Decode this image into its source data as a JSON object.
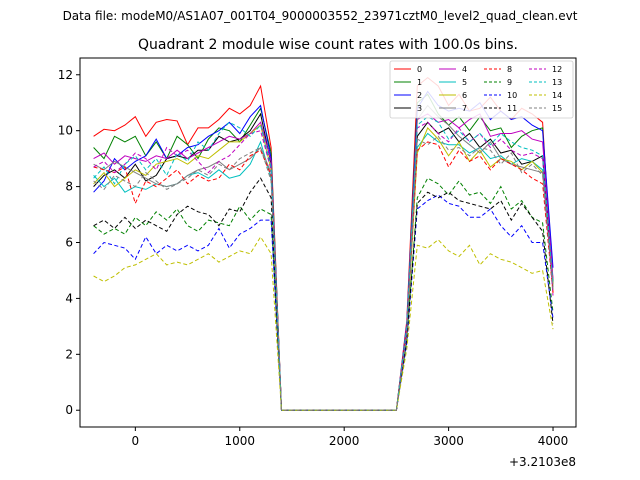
{
  "suptitle": "Data file: modeM0/AS1A07_001T04_9000003552_23971cztM0_level2_quad_clean.evt",
  "chart_data": {
    "type": "line",
    "title": "Quadrant 2 module wise count rates with 100.0s bins.",
    "xlabel": "",
    "ylabel": "",
    "x_offset_label": "+3.2103e8",
    "xlim": [
      -530,
      4220
    ],
    "ylim": [
      -0.6,
      12.6
    ],
    "x_ticks": [
      0,
      1000,
      2000,
      3000,
      4000
    ],
    "x_tick_labels": [
      "0",
      "1000",
      "2000",
      "3000",
      "4000"
    ],
    "y_ticks": [
      0,
      2,
      4,
      6,
      8,
      10,
      12
    ],
    "y_tick_labels": [
      "0",
      "2",
      "4",
      "6",
      "8",
      "10",
      "12"
    ],
    "grid": false,
    "legend_position": "top-right",
    "x": [
      -400,
      -300,
      -200,
      -100,
      0,
      100,
      200,
      300,
      400,
      500,
      600,
      700,
      800,
      900,
      1000,
      1100,
      1200,
      1300,
      1400,
      1500,
      1600,
      1700,
      1800,
      1900,
      2000,
      2100,
      2200,
      2300,
      2400,
      2500,
      2600,
      2700,
      2800,
      2900,
      3000,
      3100,
      3200,
      3300,
      3400,
      3500,
      3600,
      3700,
      3800,
      3900,
      4000
    ],
    "series": [
      {
        "name": "0",
        "color": "#ff0000",
        "dash": "solid",
        "values": [
          9.8,
          10.05,
          10.0,
          10.2,
          10.5,
          9.8,
          10.3,
          10.4,
          10.35,
          9.5,
          10.1,
          10.1,
          10.4,
          10.8,
          10.6,
          10.9,
          11.6,
          9.4,
          0,
          0,
          0,
          0,
          0,
          0,
          0,
          0,
          0,
          0,
          0,
          0,
          3.2,
          11.6,
          11.9,
          11.6,
          10.9,
          11.3,
          10.7,
          10.8,
          11.2,
          10.7,
          10.4,
          10.8,
          10.6,
          10.3,
          4.2
        ]
      },
      {
        "name": "1",
        "color": "#008000",
        "dash": "solid",
        "values": [
          9.4,
          9.0,
          9.8,
          9.6,
          9.8,
          9.1,
          9.6,
          9.0,
          9.8,
          9.5,
          9.0,
          9.7,
          10.1,
          10.0,
          9.6,
          10.2,
          10.8,
          9.2,
          0,
          0,
          0,
          0,
          0,
          0,
          0,
          0,
          0,
          0,
          0,
          0,
          3.0,
          11.0,
          11.3,
          10.6,
          10.2,
          10.5,
          10.0,
          10.5,
          10.0,
          10.1,
          9.4,
          9.8,
          10.0,
          10.1,
          4.6
        ]
      },
      {
        "name": "2",
        "color": "#0000ff",
        "dash": "solid",
        "values": [
          7.8,
          8.2,
          9.0,
          8.6,
          8.9,
          9.1,
          9.7,
          9.0,
          9.1,
          9.4,
          9.5,
          9.8,
          10.0,
          10.3,
          9.9,
          10.5,
          10.9,
          9.0,
          0,
          0,
          0,
          0,
          0,
          0,
          0,
          0,
          0,
          0,
          0,
          0,
          3.1,
          10.8,
          11.4,
          10.9,
          10.7,
          10.8,
          10.7,
          11.0,
          10.4,
          10.7,
          10.4,
          10.5,
          10.2,
          10.0,
          5.1
        ]
      },
      {
        "name": "3",
        "color": "#000000",
        "dash": "solid",
        "values": [
          8.0,
          8.4,
          8.6,
          8.3,
          8.8,
          8.2,
          8.4,
          9.0,
          9.1,
          9.0,
          9.3,
          9.3,
          9.8,
          9.6,
          9.7,
          10.0,
          10.6,
          8.8,
          0,
          0,
          0,
          0,
          0,
          0,
          0,
          0,
          0,
          0,
          0,
          0,
          2.9,
          9.8,
          10.3,
          9.9,
          10.1,
          9.6,
          9.9,
          9.4,
          9.7,
          9.2,
          9.3,
          8.8,
          8.9,
          9.1,
          4.5
        ]
      },
      {
        "name": "4",
        "color": "#bf00bf",
        "dash": "solid",
        "values": [
          9.0,
          9.2,
          8.8,
          9.1,
          9.0,
          8.9,
          9.1,
          9.0,
          9.3,
          9.0,
          9.2,
          9.4,
          9.6,
          9.8,
          9.7,
          9.9,
          10.3,
          8.9,
          0,
          0,
          0,
          0,
          0,
          0,
          0,
          0,
          0,
          0,
          0,
          0,
          3.0,
          10.4,
          10.6,
          10.3,
          10.4,
          10.1,
          10.4,
          10.6,
          9.8,
          9.9,
          9.9,
          10.0,
          9.7,
          9.6,
          4.7
        ]
      },
      {
        "name": "5",
        "color": "#00bfbf",
        "dash": "solid",
        "values": [
          8.4,
          8.0,
          8.3,
          7.8,
          8.0,
          7.9,
          8.1,
          8.0,
          8.1,
          8.4,
          8.5,
          8.3,
          8.6,
          8.3,
          8.4,
          8.8,
          9.6,
          8.3,
          0,
          0,
          0,
          0,
          0,
          0,
          0,
          0,
          0,
          0,
          0,
          0,
          2.8,
          9.4,
          9.9,
          9.6,
          9.5,
          9.5,
          9.2,
          9.4,
          9.0,
          9.1,
          8.8,
          9.0,
          8.9,
          8.6,
          4.4
        ]
      },
      {
        "name": "6",
        "color": "#bfbf00",
        "dash": "solid",
        "values": [
          8.1,
          8.5,
          8.0,
          8.3,
          8.6,
          8.4,
          8.8,
          8.9,
          9.0,
          8.8,
          9.1,
          9.0,
          9.3,
          9.6,
          9.6,
          9.9,
          10.2,
          8.6,
          0,
          0,
          0,
          0,
          0,
          0,
          0,
          0,
          0,
          0,
          0,
          0,
          2.7,
          9.2,
          10.1,
          9.7,
          9.1,
          9.6,
          8.9,
          9.3,
          8.7,
          9.0,
          8.9,
          8.6,
          8.9,
          8.5,
          4.5
        ]
      },
      {
        "name": "7",
        "color": "#808080",
        "dash": "solid",
        "values": [
          8.8,
          8.6,
          8.9,
          8.7,
          8.5,
          8.3,
          8.1,
          8.0,
          8.1,
          8.4,
          8.6,
          8.7,
          8.9,
          8.6,
          8.8,
          9.0,
          9.4,
          8.5,
          0,
          0,
          0,
          0,
          0,
          0,
          0,
          0,
          0,
          0,
          0,
          0,
          2.9,
          10.4,
          10.9,
          10.5,
          10.2,
          9.8,
          9.5,
          9.2,
          9.6,
          9.0,
          8.8,
          8.7,
          8.6,
          8.5,
          4.4
        ]
      },
      {
        "name": "8",
        "color": "#ff0000",
        "dash": "dashed",
        "values": [
          8.7,
          8.6,
          8.5,
          8.7,
          7.4,
          8.2,
          8.0,
          8.3,
          8.6,
          8.1,
          8.4,
          8.2,
          8.3,
          8.8,
          8.6,
          9.1,
          9.3,
          8.4,
          0,
          0,
          0,
          0,
          0,
          0,
          0,
          0,
          0,
          0,
          0,
          0,
          2.9,
          9.3,
          9.6,
          9.5,
          8.7,
          9.3,
          8.9,
          9.1,
          8.6,
          9.0,
          8.8,
          8.6,
          8.3,
          8.1,
          4.2
        ]
      },
      {
        "name": "9",
        "color": "#008000",
        "dash": "dashed",
        "values": [
          6.6,
          6.3,
          6.5,
          6.3,
          6.9,
          6.6,
          7.1,
          6.8,
          7.2,
          6.6,
          6.4,
          6.8,
          6.7,
          6.6,
          7.3,
          6.8,
          7.2,
          7.0,
          0,
          0,
          0,
          0,
          0,
          0,
          0,
          0,
          0,
          0,
          0,
          0,
          2.5,
          7.6,
          8.3,
          8.1,
          7.7,
          8.2,
          7.7,
          7.8,
          7.4,
          8.0,
          7.2,
          7.5,
          6.9,
          6.7,
          3.5
        ]
      },
      {
        "name": "10",
        "color": "#0000ff",
        "dash": "dashed",
        "values": [
          5.6,
          6.0,
          5.9,
          5.8,
          5.4,
          6.2,
          5.6,
          5.9,
          5.7,
          5.9,
          5.7,
          5.9,
          6.5,
          5.8,
          6.3,
          6.5,
          6.8,
          6.8,
          0,
          0,
          0,
          0,
          0,
          0,
          0,
          0,
          0,
          0,
          0,
          0,
          2.4,
          7.2,
          7.5,
          7.7,
          7.4,
          7.3,
          6.9,
          6.9,
          7.2,
          6.6,
          6.2,
          6.6,
          6.0,
          6.0,
          3.3
        ]
      },
      {
        "name": "11",
        "color": "#000000",
        "dash": "dashed",
        "values": [
          6.6,
          6.8,
          6.5,
          6.9,
          6.5,
          6.8,
          6.6,
          6.4,
          7.0,
          7.3,
          7.1,
          7.0,
          6.6,
          7.2,
          7.1,
          7.8,
          8.3,
          7.6,
          0,
          0,
          0,
          0,
          0,
          0,
          0,
          0,
          0,
          0,
          0,
          0,
          2.6,
          7.4,
          7.8,
          7.6,
          7.8,
          7.5,
          7.4,
          7.3,
          7.2,
          7.5,
          6.8,
          7.4,
          6.9,
          6.4,
          3.1
        ]
      },
      {
        "name": "12",
        "color": "#bf00bf",
        "dash": "dashed",
        "values": [
          8.7,
          8.9,
          8.5,
          8.8,
          9.2,
          9.0,
          8.6,
          9.4,
          9.1,
          9.3,
          8.9,
          8.5,
          8.9,
          9.1,
          9.5,
          9.9,
          10.0,
          8.6,
          0,
          0,
          0,
          0,
          0,
          0,
          0,
          0,
          0,
          0,
          0,
          0,
          2.8,
          10.1,
          10.3,
          9.9,
          9.6,
          10.1,
          9.6,
          9.9,
          9.4,
          9.7,
          9.3,
          9.1,
          9.2,
          9.0,
          4.1
        ]
      },
      {
        "name": "13",
        "color": "#00bfbf",
        "dash": "dashed",
        "values": [
          8.3,
          8.7,
          8.1,
          8.8,
          9.1,
          8.6,
          9.0,
          8.4,
          9.2,
          8.9,
          9.6,
          9.3,
          9.9,
          10.3,
          10.1,
          9.8,
          10.2,
          8.7,
          0,
          0,
          0,
          0,
          0,
          0,
          0,
          0,
          0,
          0,
          0,
          0,
          3.0,
          10.2,
          10.5,
          10.3,
          9.7,
          10.0,
          9.6,
          9.9,
          9.5,
          9.9,
          9.6,
          9.4,
          9.3,
          9.1,
          4.5
        ]
      },
      {
        "name": "14",
        "color": "#bfbf00",
        "dash": "dashed",
        "values": [
          4.8,
          4.6,
          4.8,
          5.1,
          5.2,
          5.4,
          5.6,
          5.2,
          5.3,
          5.2,
          5.4,
          5.6,
          5.3,
          5.5,
          5.7,
          5.6,
          6.2,
          5.6,
          0,
          0,
          0,
          0,
          0,
          0,
          0,
          0,
          0,
          0,
          0,
          0,
          2.2,
          5.9,
          5.8,
          6.1,
          5.7,
          5.5,
          5.9,
          5.2,
          5.6,
          5.4,
          5.3,
          5.1,
          4.9,
          5.0,
          2.9
        ]
      },
      {
        "name": "15",
        "color": "#808080",
        "dash": "dashed",
        "values": [
          8.2,
          7.9,
          8.4,
          8.2,
          8.0,
          8.5,
          8.2,
          7.9,
          8.1,
          8.3,
          8.6,
          8.4,
          8.8,
          8.6,
          9.0,
          9.2,
          9.4,
          8.2,
          0,
          0,
          0,
          0,
          0,
          0,
          0,
          0,
          0,
          0,
          0,
          0,
          2.7,
          9.7,
          9.5,
          9.8,
          9.3,
          9.4,
          9.1,
          9.4,
          9.3,
          8.8,
          9.2,
          8.5,
          8.8,
          8.4,
          4.3
        ]
      }
    ]
  }
}
